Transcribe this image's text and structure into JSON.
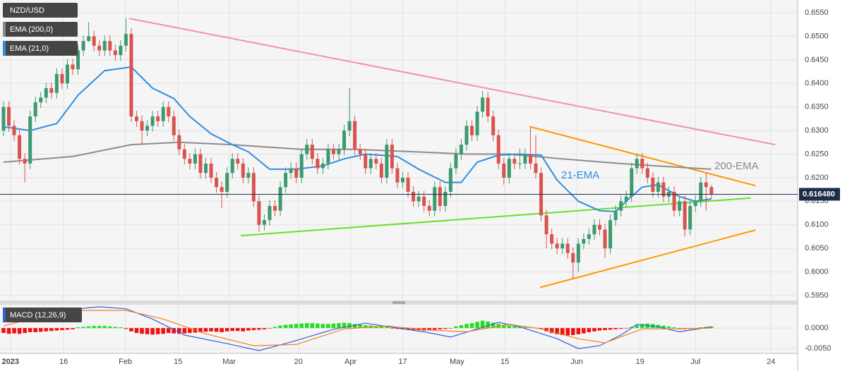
{
  "chart_data": [
    {
      "type": "candlestick",
      "title": "NZD/USD",
      "up_color": "#3d9970",
      "down_color": "#d9534f",
      "grid": true,
      "open": [
        0.63,
        0.635,
        0.631,
        0.629,
        0.624,
        0.623,
        0.633,
        0.636,
        0.637,
        0.639,
        0.638,
        0.642,
        0.64,
        0.644,
        0.643,
        0.647,
        0.649,
        0.65,
        0.648,
        0.647,
        0.649,
        0.647,
        0.646,
        0.648,
        0.6505,
        0.633,
        0.632,
        0.63,
        0.631,
        0.633,
        0.632,
        0.635,
        0.633,
        0.629,
        0.626,
        0.624,
        0.623,
        0.625,
        0.621,
        0.623,
        0.62,
        0.618,
        0.617,
        0.621,
        0.624,
        0.623,
        0.62,
        0.621,
        0.615,
        0.61,
        0.611,
        0.614,
        0.613,
        0.618,
        0.621,
        0.622,
        0.62,
        0.625,
        0.627,
        0.624,
        0.622,
        0.623,
        0.626,
        0.625,
        0.626,
        0.63,
        0.632,
        0.626,
        0.625,
        0.622,
        0.624,
        0.623,
        0.62,
        0.627,
        0.622,
        0.619,
        0.62,
        0.617,
        0.615,
        0.616,
        0.614,
        0.613,
        0.618,
        0.614,
        0.617,
        0.622,
        0.625,
        0.627,
        0.631,
        0.629,
        0.634,
        0.637,
        0.633,
        0.629,
        0.623,
        0.62,
        0.624,
        0.623,
        0.623,
        0.625,
        0.623,
        0.621,
        0.612,
        0.608,
        0.606,
        0.605,
        0.606,
        0.604,
        0.602,
        0.606,
        0.607,
        0.608,
        0.61,
        0.609,
        0.605,
        0.611,
        0.613,
        0.615,
        0.616,
        0.622,
        0.624,
        0.622,
        0.62,
        0.617,
        0.619,
        0.616,
        0.617,
        0.613,
        0.615,
        0.609,
        0.614,
        0.615,
        0.619,
        0.618
      ],
      "high": [
        0.6362,
        0.6362,
        0.6322,
        0.6302,
        0.6252,
        0.6342,
        0.6372,
        0.6382,
        0.6402,
        0.6402,
        0.6432,
        0.6432,
        0.6452,
        0.6452,
        0.6482,
        0.6502,
        0.653,
        0.6512,
        0.6492,
        0.6502,
        0.6502,
        0.6482,
        0.6492,
        0.6538,
        0.6517,
        0.6342,
        0.6332,
        0.6322,
        0.6342,
        0.6342,
        0.6362,
        0.6362,
        0.6342,
        0.6302,
        0.6272,
        0.6252,
        0.6262,
        0.6262,
        0.6242,
        0.6242,
        0.6212,
        0.6192,
        0.6222,
        0.6252,
        0.6252,
        0.6242,
        0.6222,
        0.6222,
        0.6162,
        0.6122,
        0.6152,
        0.6152,
        0.6192,
        0.6222,
        0.6232,
        0.6232,
        0.6262,
        0.6282,
        0.6282,
        0.6252,
        0.6242,
        0.6272,
        0.6272,
        0.6272,
        0.6312,
        0.639,
        0.6332,
        0.6272,
        0.6262,
        0.6252,
        0.6252,
        0.6242,
        0.6282,
        0.6282,
        0.6232,
        0.6212,
        0.6212,
        0.6182,
        0.6172,
        0.6172,
        0.6152,
        0.6192,
        0.6192,
        0.6182,
        0.6232,
        0.6262,
        0.6282,
        0.6322,
        0.6322,
        0.6352,
        0.6384,
        0.6382,
        0.6342,
        0.6302,
        0.6242,
        0.6252,
        0.6252,
        0.6262,
        0.6262,
        0.631,
        0.629,
        0.6222,
        0.6132,
        0.6092,
        0.6072,
        0.6072,
        0.6072,
        0.6052,
        0.6072,
        0.6082,
        0.6092,
        0.6112,
        0.6112,
        0.6102,
        0.6122,
        0.6142,
        0.6162,
        0.6172,
        0.6232,
        0.6252,
        0.6252,
        0.6232,
        0.6212,
        0.6202,
        0.6202,
        0.6182,
        0.6182,
        0.6162,
        0.6162,
        0.6152,
        0.6162,
        0.6202,
        0.621,
        0.6185
      ],
      "low": [
        0.6288,
        0.6298,
        0.6278,
        0.6228,
        0.619,
        0.6218,
        0.6318,
        0.6348,
        0.6358,
        0.6368,
        0.6368,
        0.6388,
        0.6388,
        0.6418,
        0.6418,
        0.6458,
        0.6488,
        0.6468,
        0.6458,
        0.6458,
        0.6458,
        0.6448,
        0.6448,
        0.6468,
        0.6318,
        0.6308,
        0.627,
        0.6288,
        0.6298,
        0.6308,
        0.6308,
        0.6318,
        0.6278,
        0.6248,
        0.6228,
        0.6218,
        0.6218,
        0.6198,
        0.6198,
        0.6188,
        0.6168,
        0.6135,
        0.6158,
        0.6198,
        0.6218,
        0.6188,
        0.6188,
        0.6138,
        0.6085,
        0.6088,
        0.6098,
        0.6118,
        0.6118,
        0.6168,
        0.6198,
        0.6188,
        0.6188,
        0.6238,
        0.6228,
        0.6208,
        0.6208,
        0.6218,
        0.6238,
        0.6238,
        0.6248,
        0.6288,
        0.6248,
        0.6238,
        0.6208,
        0.6208,
        0.6218,
        0.6188,
        0.6188,
        0.6208,
        0.6178,
        0.6178,
        0.6158,
        0.6138,
        0.6138,
        0.6128,
        0.6118,
        0.6118,
        0.6128,
        0.6128,
        0.6158,
        0.6208,
        0.6238,
        0.6258,
        0.6278,
        0.6278,
        0.6328,
        0.6318,
        0.6278,
        0.6218,
        0.6185,
        0.6188,
        0.6218,
        0.6218,
        0.6218,
        0.6218,
        0.6198,
        0.6108,
        0.605,
        0.6048,
        0.6038,
        0.6038,
        0.6028,
        0.5985,
        0.6,
        0.6048,
        0.6058,
        0.6068,
        0.6078,
        0.603,
        0.6038,
        0.6098,
        0.6118,
        0.6138,
        0.6148,
        0.6208,
        0.6208,
        0.6188,
        0.6158,
        0.6158,
        0.6148,
        0.6148,
        0.6118,
        0.6118,
        0.6075,
        0.6078,
        0.6128,
        0.6138,
        0.613,
        0.6155
      ],
      "close": [
        0.635,
        0.631,
        0.629,
        0.624,
        0.623,
        0.633,
        0.636,
        0.637,
        0.639,
        0.638,
        0.642,
        0.64,
        0.644,
        0.643,
        0.647,
        0.649,
        0.65,
        0.648,
        0.647,
        0.649,
        0.647,
        0.646,
        0.648,
        0.6505,
        0.633,
        0.632,
        0.63,
        0.631,
        0.633,
        0.632,
        0.635,
        0.633,
        0.629,
        0.626,
        0.624,
        0.623,
        0.625,
        0.621,
        0.623,
        0.62,
        0.618,
        0.617,
        0.621,
        0.624,
        0.623,
        0.62,
        0.621,
        0.615,
        0.61,
        0.611,
        0.614,
        0.613,
        0.618,
        0.621,
        0.622,
        0.62,
        0.625,
        0.627,
        0.624,
        0.622,
        0.623,
        0.626,
        0.625,
        0.626,
        0.63,
        0.632,
        0.626,
        0.625,
        0.622,
        0.624,
        0.623,
        0.62,
        0.627,
        0.622,
        0.619,
        0.62,
        0.617,
        0.615,
        0.616,
        0.614,
        0.613,
        0.618,
        0.614,
        0.617,
        0.622,
        0.625,
        0.627,
        0.631,
        0.629,
        0.634,
        0.637,
        0.633,
        0.629,
        0.623,
        0.62,
        0.624,
        0.623,
        0.623,
        0.625,
        0.623,
        0.621,
        0.612,
        0.608,
        0.606,
        0.605,
        0.606,
        0.604,
        0.602,
        0.606,
        0.607,
        0.608,
        0.61,
        0.609,
        0.605,
        0.611,
        0.613,
        0.615,
        0.616,
        0.622,
        0.624,
        0.622,
        0.62,
        0.617,
        0.619,
        0.616,
        0.617,
        0.613,
        0.615,
        0.609,
        0.614,
        0.615,
        0.619,
        0.618,
        0.6165
      ],
      "xlim": [
        -0.66,
        149.2
      ],
      "xticks": [
        {
          "value": 1.3,
          "label": "2023"
        },
        {
          "value": 11.3,
          "label": "16"
        },
        {
          "value": 22.9,
          "label": "Feb"
        },
        {
          "value": 32.8,
          "label": "15"
        },
        {
          "value": 42.4,
          "label": "Mar"
        },
        {
          "value": 55.4,
          "label": "20"
        },
        {
          "value": 65.2,
          "label": "Apr"
        },
        {
          "value": 75,
          "label": "17"
        },
        {
          "value": 85.2,
          "label": "May"
        },
        {
          "value": 94.2,
          "label": "15"
        },
        {
          "value": 107.7,
          "label": "Jun"
        },
        {
          "value": 119.6,
          "label": "19"
        },
        {
          "value": 130,
          "label": "Jul"
        },
        {
          "value": 144.2,
          "label": "24"
        }
      ],
      "ylim": [
        0.5941,
        0.6577
      ],
      "yticks": [
        {
          "value": 0.655,
          "label": "0.6550"
        },
        {
          "value": 0.65,
          "label": "0.6500"
        },
        {
          "value": 0.645,
          "label": "0.6450"
        },
        {
          "value": 0.64,
          "label": "0.6400"
        },
        {
          "value": 0.635,
          "label": "0.6350"
        },
        {
          "value": 0.63,
          "label": "0.6300"
        },
        {
          "value": 0.625,
          "label": "0.6250"
        },
        {
          "value": 0.62,
          "label": "0.6200"
        },
        {
          "value": 0.615,
          "label": "0.6150"
        },
        {
          "value": 0.61,
          "label": "0.6100"
        },
        {
          "value": 0.605,
          "label": "0.6050"
        },
        {
          "value": 0.6,
          "label": "0.6000"
        },
        {
          "value": 0.595,
          "label": "0.5950"
        }
      ],
      "last_price": {
        "value": 0.61648,
        "label": "0.616480"
      },
      "overlays": [
        {
          "name": "EMA (200,0)",
          "label": "200-EMA",
          "color": "#8c8c8c",
          "x": [
            0,
            13,
            24,
            33,
            43,
            56,
            66,
            79,
            87,
            95,
            105,
            116,
            127,
            133
          ],
          "values": [
            0.6233,
            0.6245,
            0.627,
            0.6275,
            0.627,
            0.626,
            0.626,
            0.6254,
            0.625,
            0.625,
            0.624,
            0.623,
            0.6222,
            0.6218
          ]
        },
        {
          "name": "EMA (21,0)",
          "label": "21-EMA",
          "color": "#2f8fe0",
          "x": [
            0,
            5,
            10,
            14,
            19,
            24,
            28,
            32,
            35,
            39,
            43,
            46,
            50,
            55,
            60,
            64,
            68,
            74,
            78,
            83,
            86,
            89,
            93,
            97,
            101,
            104,
            108,
            112,
            115,
            117,
            120,
            123,
            127,
            130,
            133
          ],
          "values": [
            0.6308,
            0.63,
            0.6315,
            0.6375,
            0.6427,
            0.6435,
            0.639,
            0.6368,
            0.633,
            0.6293,
            0.627,
            0.6255,
            0.6218,
            0.6218,
            0.6225,
            0.624,
            0.625,
            0.6245,
            0.6218,
            0.619,
            0.619,
            0.6233,
            0.6248,
            0.625,
            0.6248,
            0.6195,
            0.615,
            0.613,
            0.6128,
            0.615,
            0.618,
            0.6185,
            0.616,
            0.615,
            0.6155
          ]
        }
      ],
      "trendlines": [
        {
          "color": "#f48fb1",
          "x": [
            23.6,
            145
          ],
          "values": [
            0.6538,
            0.627
          ]
        },
        {
          "color": "#ff9800",
          "x": [
            99,
            141.3
          ],
          "values": [
            0.6308,
            0.6183
          ]
        },
        {
          "color": "#ff9800",
          "x": [
            100.8,
            141.3
          ],
          "values": [
            0.5967,
            0.6089
          ]
        },
        {
          "color": "#66e02a",
          "x": [
            44.6,
            140.4
          ],
          "values": [
            0.6077,
            0.6157
          ]
        }
      ]
    },
    {
      "type": "macd",
      "title": "MACD (12,26,9)",
      "histogram": {
        "up_color": "#22e01f",
        "down_color": "#f01010",
        "values": [
          -0.0012,
          -0.0014,
          -0.0013,
          -0.0014,
          -0.0012,
          -0.001,
          -0.001,
          -0.0009,
          -0.0008,
          -0.0007,
          -0.0006,
          -0.0005,
          -0.0004,
          -0.0003,
          0.0002,
          0.0003,
          0.0004,
          0.0005,
          0.0005,
          0.0005,
          0.0004,
          0.0003,
          0.0002,
          -0.0002,
          -0.0008,
          -0.0012,
          -0.0014,
          -0.0015,
          -0.0016,
          -0.0015,
          -0.0014,
          -0.0012,
          -0.0013,
          -0.0014,
          -0.0013,
          -0.0012,
          -0.0011,
          -0.001,
          -0.0009,
          -0.0008,
          -0.0009,
          -0.001,
          -0.0008,
          -0.0007,
          -0.0007,
          -0.0008,
          -0.0006,
          -0.0005,
          -0.0004,
          -0.0003,
          -0.0001,
          0.0003,
          0.0006,
          0.0008,
          0.0009,
          0.001,
          0.0011,
          0.0012,
          0.0012,
          0.0011,
          0.001,
          0.001,
          0.0011,
          0.0012,
          0.0013,
          0.0012,
          0.001,
          0.0008,
          0.0007,
          0.0006,
          0.0005,
          0.0004,
          0.0003,
          -0.0001,
          -0.0002,
          -0.0003,
          -0.0004,
          -0.0005,
          -0.0005,
          -0.0006,
          -0.0005,
          -0.0004,
          -0.0003,
          -0.0002,
          -0.0001,
          0.0004,
          0.0007,
          0.001,
          0.0012,
          0.0015,
          0.0018,
          0.0016,
          0.0013,
          0.001,
          0.0008,
          0.0006,
          0.0004,
          0.0003,
          0.0002,
          0.0001,
          0.0001,
          -0.0003,
          -0.0008,
          -0.0012,
          -0.0015,
          -0.0017,
          -0.0018,
          -0.0017,
          -0.0015,
          -0.0013,
          -0.001,
          -0.0008,
          -0.0006,
          -0.0005,
          -0.0004,
          -0.0003,
          -0.0002,
          -0.0001,
          0.0003,
          0.0007,
          0.001,
          0.0011,
          0.001,
          0.0008,
          0.0006,
          0.0004,
          0.0002,
          -0.0001,
          -0.0002,
          -0.0002,
          -0.0001,
          0.0002,
          0.0003,
          0.0004
        ]
      },
      "series": [
        {
          "color": "#2f5fe0",
          "x": [
            0,
            5,
            11,
            18,
            23,
            28,
            34,
            42,
            48,
            54,
            62,
            68,
            74,
            79,
            84,
            89,
            93,
            97,
            104,
            108,
            112,
            116,
            119,
            123,
            127,
            130,
            133
          ],
          "values": [
            0.0017,
            0.0034,
            0.0043,
            0.0052,
            0.0047,
            0.0022,
            -0.0017,
            -0.0038,
            -0.0055,
            -0.0034,
            -0.0003,
            0.0012,
            0,
            -0.0009,
            -0.0022,
            -0.0002,
            0.0014,
            0.0003,
            -0.0026,
            -0.005,
            -0.0043,
            -0.0017,
            0.0009,
            0.0003,
            -0.0009,
            -0.0003,
            0.0003
          ]
        },
        {
          "color": "#f08020",
          "x": [
            0,
            7,
            15,
            23,
            30,
            38,
            47,
            55,
            64,
            72,
            80,
            87,
            95,
            101,
            108,
            113,
            120,
            127,
            133
          ],
          "values": [
            0.0005,
            0.0029,
            0.0043,
            0.0043,
            0.0022,
            -0.0014,
            -0.0043,
            -0.004,
            -0.0002,
            0.0005,
            -0.0005,
            -0.0009,
            0.0009,
            -0.0002,
            -0.0026,
            -0.0036,
            -0.0002,
            -0.0002,
            0
          ]
        }
      ],
      "ylim": [
        -0.006,
        0.0057
      ],
      "yticks": [
        {
          "value": 0,
          "label": "0.0000"
        },
        {
          "value": -0.005,
          "label": "-0.0050"
        }
      ]
    }
  ]
}
